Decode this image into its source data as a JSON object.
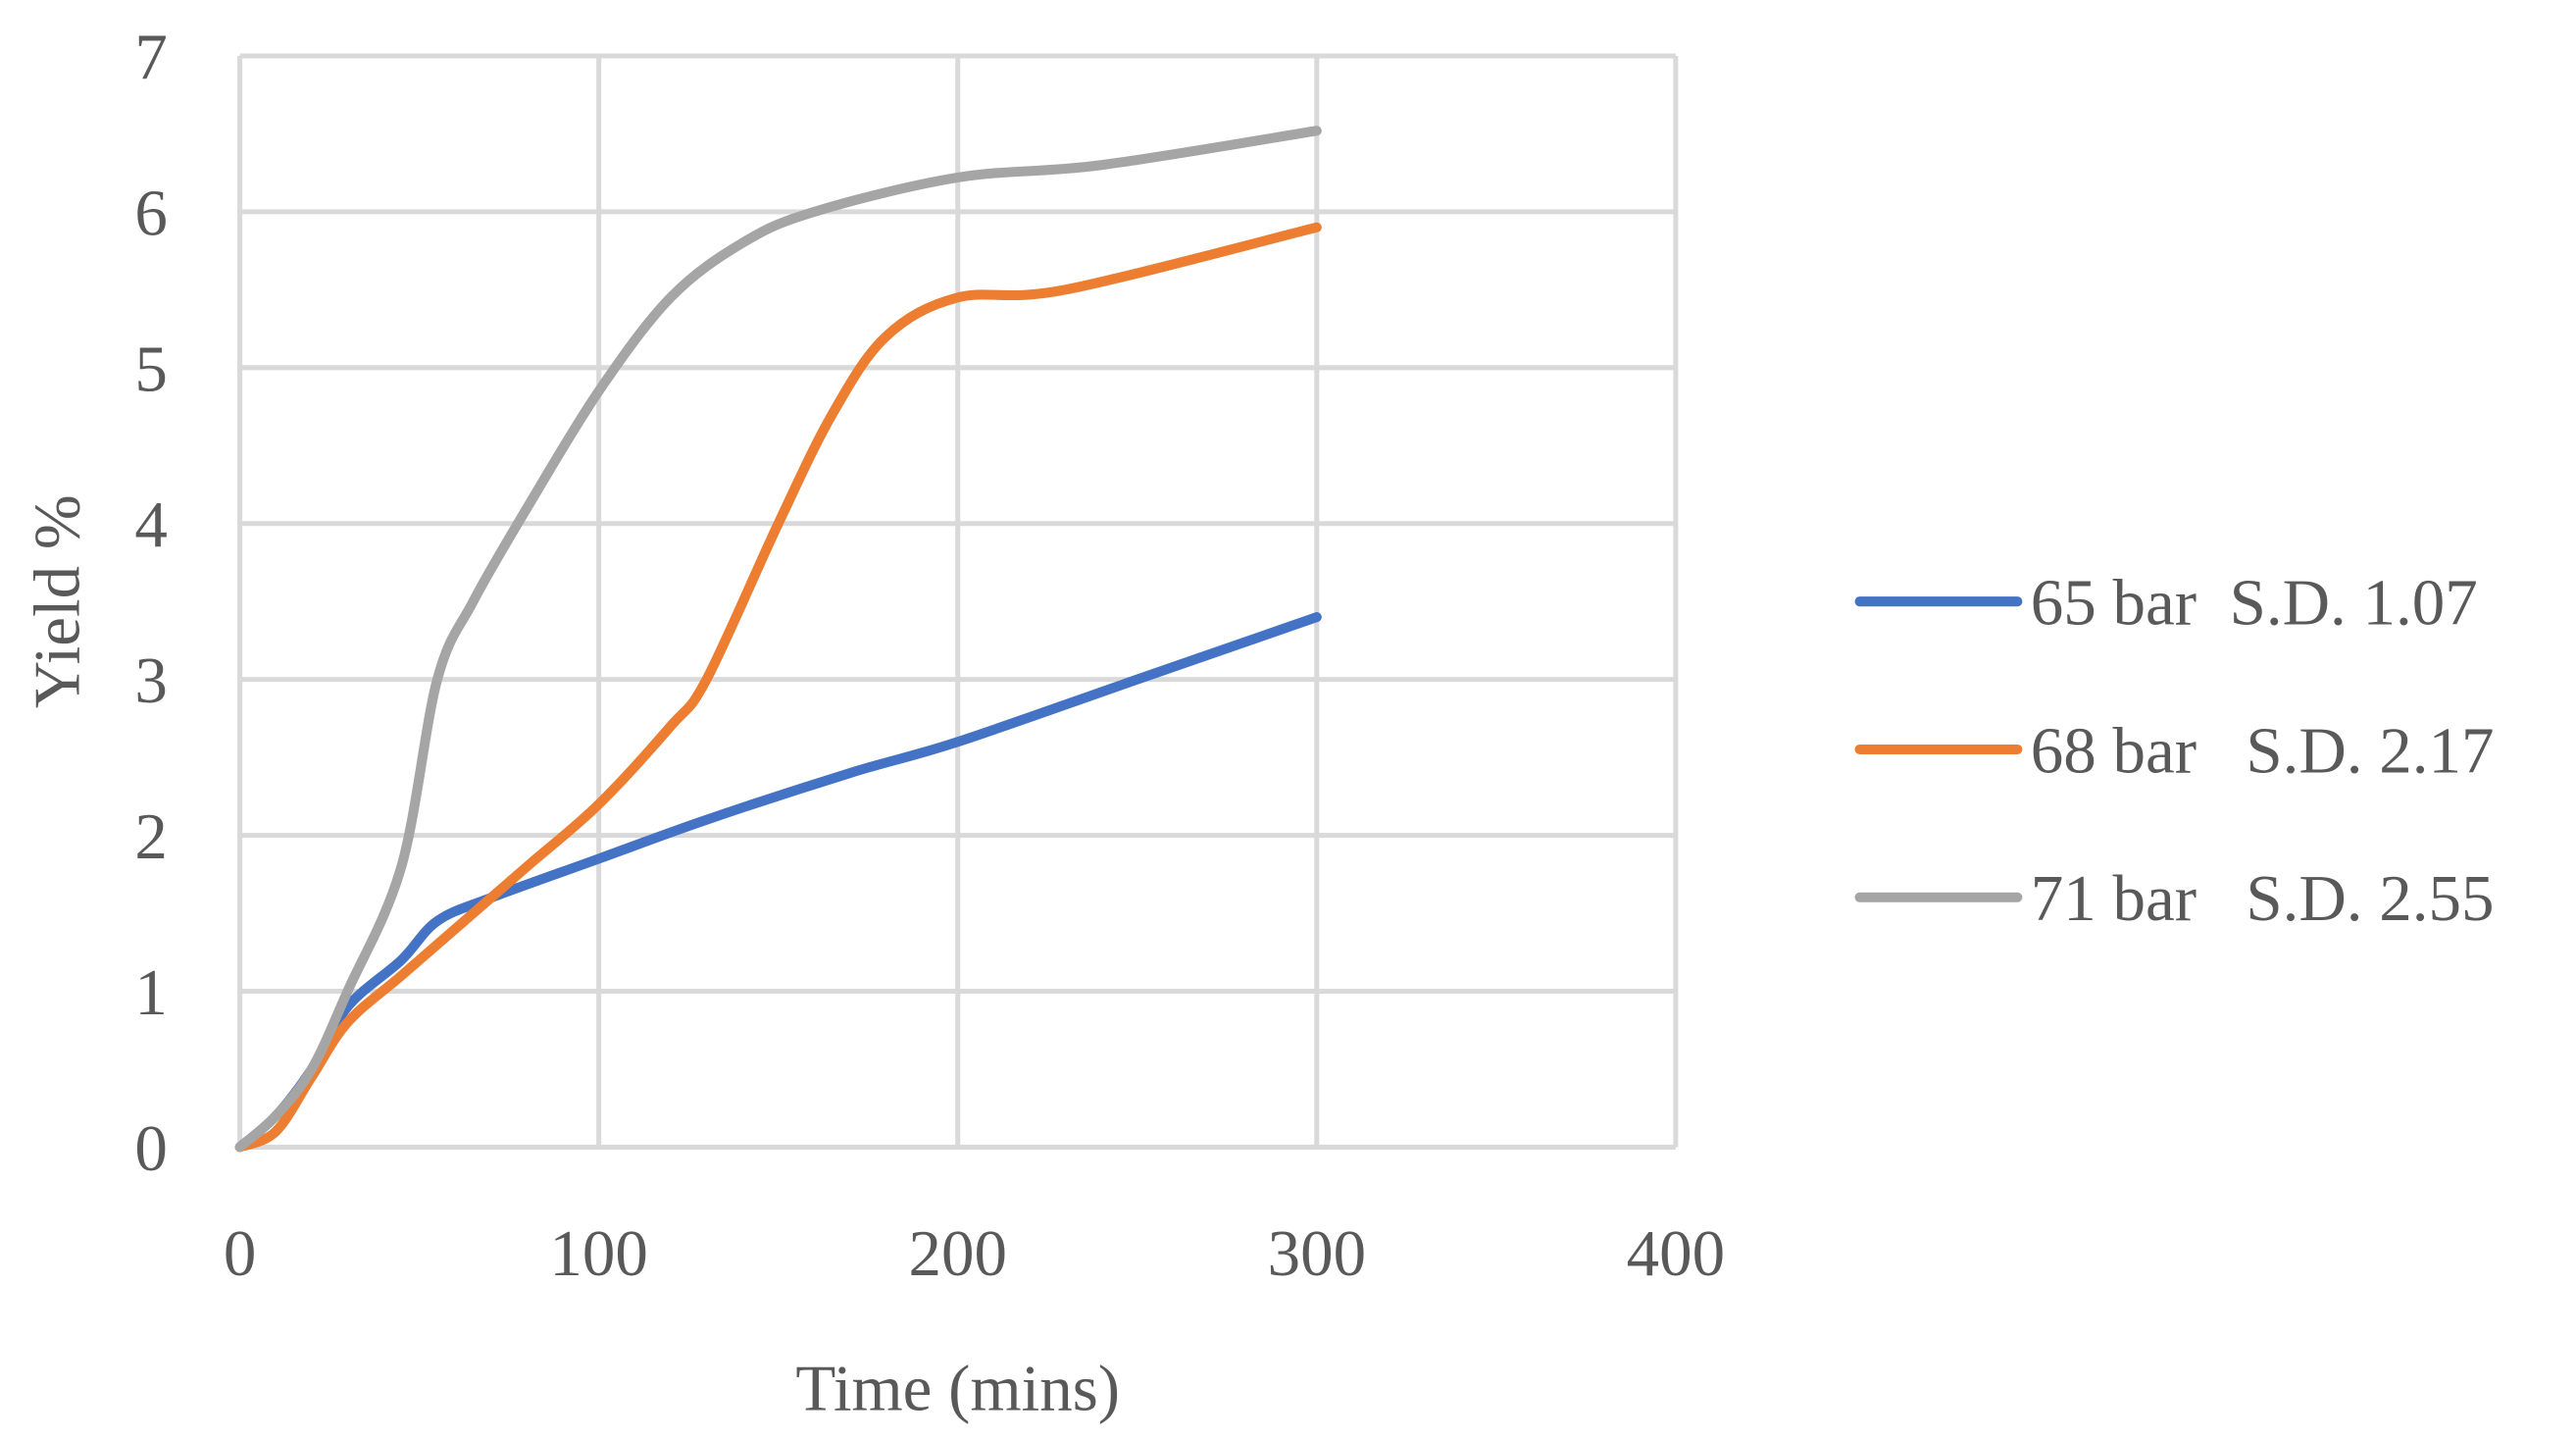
{
  "chart_data": {
    "type": "line",
    "xlabel": "Time (mins)",
    "ylabel": "Yield %",
    "xlim": [
      0,
      400
    ],
    "xticks": [
      0,
      100,
      200,
      300,
      400
    ],
    "ylim": [
      0,
      7
    ],
    "yticks": [
      0,
      1,
      2,
      3,
      4,
      5,
      6,
      7
    ],
    "grid": true,
    "legend": "right",
    "series": [
      {
        "name": "65 bar  S.D. 1.07",
        "color": "#4472c4",
        "x": [
          0,
          10,
          20,
          30,
          45,
          55,
          70,
          100,
          130,
          170,
          200,
          250,
          300
        ],
        "values": [
          0,
          0.2,
          0.5,
          0.9,
          1.2,
          1.45,
          1.6,
          1.85,
          2.1,
          2.4,
          2.6,
          3.0,
          3.4
        ]
      },
      {
        "name": "68 bar   S.D. 2.17",
        "color": "#ed7d31",
        "x": [
          0,
          10,
          20,
          30,
          45,
          60,
          80,
          100,
          120,
          130,
          150,
          165,
          180,
          200,
          230,
          300
        ],
        "values": [
          0,
          0.1,
          0.45,
          0.8,
          1.1,
          1.4,
          1.8,
          2.2,
          2.7,
          3.0,
          4.0,
          4.7,
          5.2,
          5.45,
          5.5,
          5.9
        ]
      },
      {
        "name": "71 bar   S.D. 2.55",
        "color": "#a5a5a5",
        "x": [
          0,
          10,
          20,
          30,
          45,
          55,
          65,
          80,
          100,
          120,
          140,
          160,
          200,
          240,
          300
        ],
        "values": [
          0,
          0.2,
          0.5,
          1.0,
          1.8,
          3.0,
          3.5,
          4.1,
          4.85,
          5.45,
          5.8,
          6.0,
          6.22,
          6.3,
          6.52
        ]
      }
    ]
  }
}
